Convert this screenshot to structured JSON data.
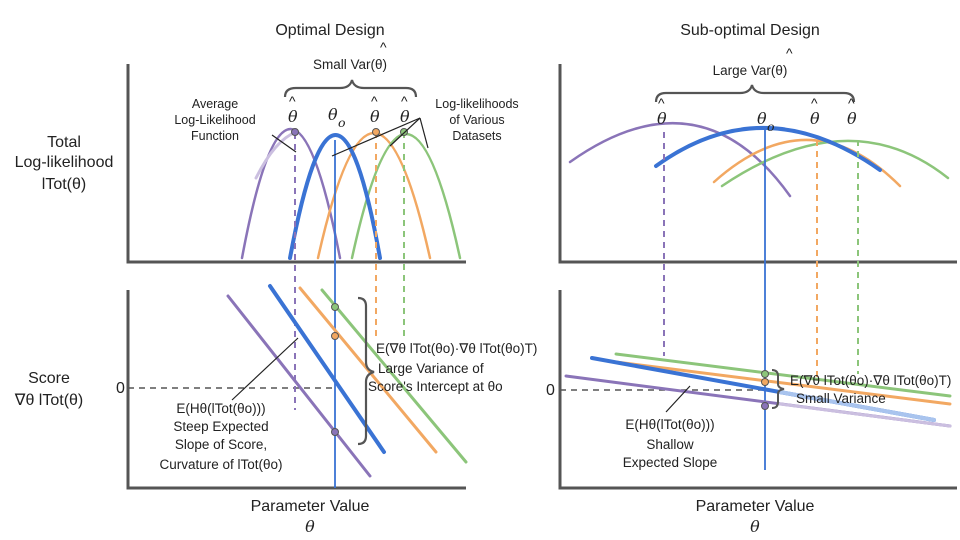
{
  "left": {
    "title": "Optimal Design",
    "bracket_label": "Small Var(θ)",
    "theta_o": "θ",
    "theta_o_sub": "o",
    "theta_hat": "θ",
    "hat": "^",
    "avg_label": [
      "Average",
      "Log-Likelihood",
      "Function"
    ],
    "datasets_label": [
      "Log-likelihoods",
      "of Various",
      "Datasets"
    ],
    "var_label_expr": "E(∇θ lTot(θo)·∇θ lTot(θo)T)",
    "var_label": [
      "Large Variance of",
      "Score's Intercept at θo"
    ],
    "hess_label_expr": "E(Hθ(lTot(θo)))",
    "hess_label": [
      "Steep Expected",
      "Slope of Score,",
      "Curvature of lTot(θo)"
    ],
    "xlabel": "Parameter Value",
    "xsym": "θ"
  },
  "right": {
    "title": "Sub-optimal Design",
    "bracket_label": "Large Var(θ)",
    "var_label_expr": "E(∇θ lTot(θo)·∇θ lTot(θo)T)",
    "var_label": "Small Variance",
    "hess_label_expr": "E(Hθ(lTot(θo)))",
    "hess_label": [
      "Shallow",
      "Expected Slope"
    ],
    "xlabel": "Parameter Value",
    "xsym": "θ"
  },
  "yaxis_top": [
    "Total",
    "Log-likelihood",
    "lTot(θ)"
  ],
  "yaxis_bottom": [
    "Score",
    "∇θ lTot(θ)"
  ],
  "zero_tick": "0",
  "colors": {
    "purple": "#8a74b8",
    "blue": "#3a73d4",
    "orange": "#f2a862",
    "green": "#8cc57a",
    "axis": "#555555",
    "text": "#222222"
  }
}
